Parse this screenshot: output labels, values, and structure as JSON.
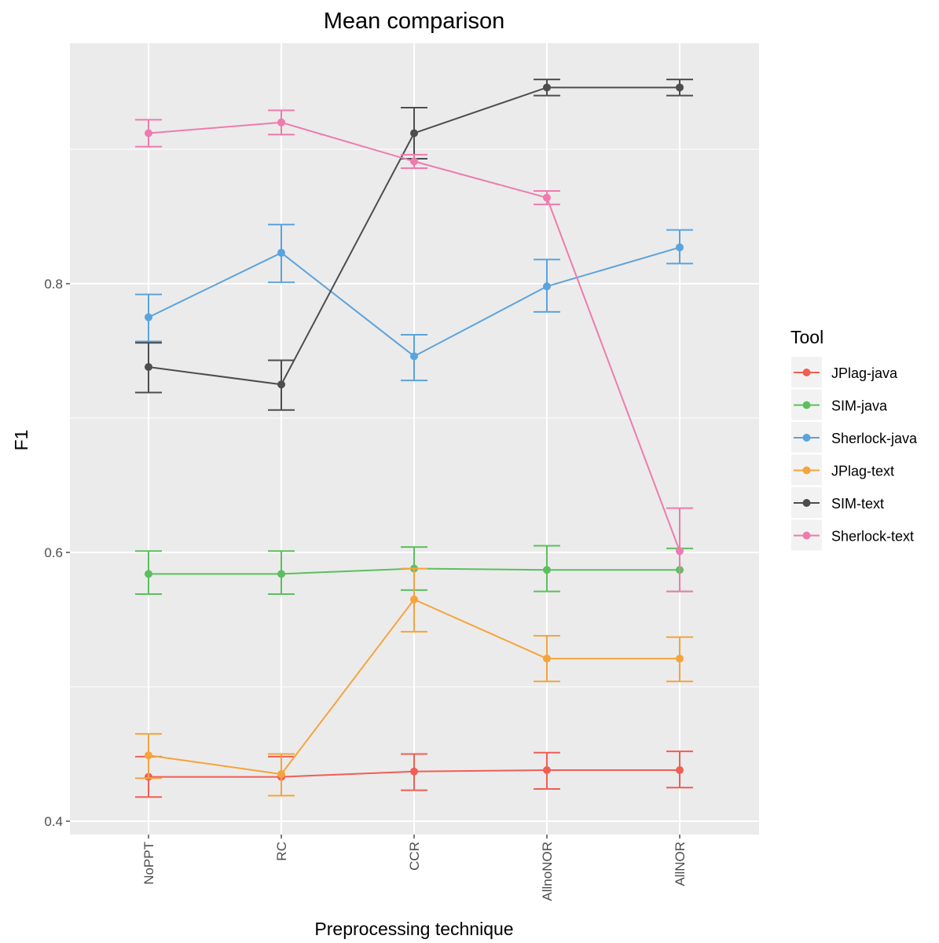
{
  "chart_data": {
    "type": "line",
    "title": "Mean comparison",
    "xlabel": "Preprocessing technique",
    "ylabel": "F1",
    "categories": [
      "NoPPT",
      "RC",
      "CCR",
      "AllnoNOR",
      "AllNOR"
    ],
    "y_ticks": [
      0.4,
      0.6,
      0.8
    ],
    "y_tick_labels": [
      "0.4",
      "0.6",
      "0.8"
    ],
    "ylim": [
      0.393,
      0.968
    ],
    "grid": true,
    "error_bars": true,
    "legend": {
      "title": "Tool",
      "position": "right"
    },
    "series": [
      {
        "name": "JPlag-java",
        "color": "#F05E54",
        "values": [
          0.433,
          0.433,
          0.437,
          0.438,
          0.438
        ],
        "lower": [
          0.418,
          0.419,
          0.423,
          0.424,
          0.425
        ],
        "upper": [
          0.448,
          0.448,
          0.45,
          0.451,
          0.452
        ]
      },
      {
        "name": "SIM-java",
        "color": "#5CBF5E",
        "values": [
          0.584,
          0.584,
          0.588,
          0.587,
          0.587
        ],
        "lower": [
          0.569,
          0.569,
          0.572,
          0.571,
          0.571
        ],
        "upper": [
          0.601,
          0.601,
          0.604,
          0.605,
          0.603
        ]
      },
      {
        "name": "Sherlock-java",
        "color": "#5BA3DC",
        "values": [
          0.775,
          0.823,
          0.746,
          0.798,
          0.827
        ],
        "lower": [
          0.757,
          0.801,
          0.728,
          0.779,
          0.815
        ],
        "upper": [
          0.792,
          0.844,
          0.762,
          0.818,
          0.84
        ]
      },
      {
        "name": "JPlag-text",
        "color": "#F5A43C",
        "values": [
          0.449,
          0.435,
          0.565,
          0.521,
          0.521
        ],
        "lower": [
          0.432,
          0.419,
          0.541,
          0.504,
          0.504
        ],
        "upper": [
          0.465,
          0.45,
          0.588,
          0.538,
          0.537
        ]
      },
      {
        "name": "SIM-text",
        "color": "#4D4D4D",
        "values": [
          0.738,
          0.725,
          0.912,
          0.946,
          0.946
        ],
        "lower": [
          0.719,
          0.706,
          0.893,
          0.94,
          0.94
        ],
        "upper": [
          0.756,
          0.743,
          0.931,
          0.952,
          0.952
        ]
      },
      {
        "name": "Sherlock-text",
        "color": "#EE7BAE",
        "values": [
          0.912,
          0.92,
          0.891,
          0.864,
          0.601
        ],
        "lower": [
          0.902,
          0.911,
          0.886,
          0.859,
          0.571
        ],
        "upper": [
          0.922,
          0.929,
          0.896,
          0.869,
          0.633
        ]
      }
    ]
  }
}
